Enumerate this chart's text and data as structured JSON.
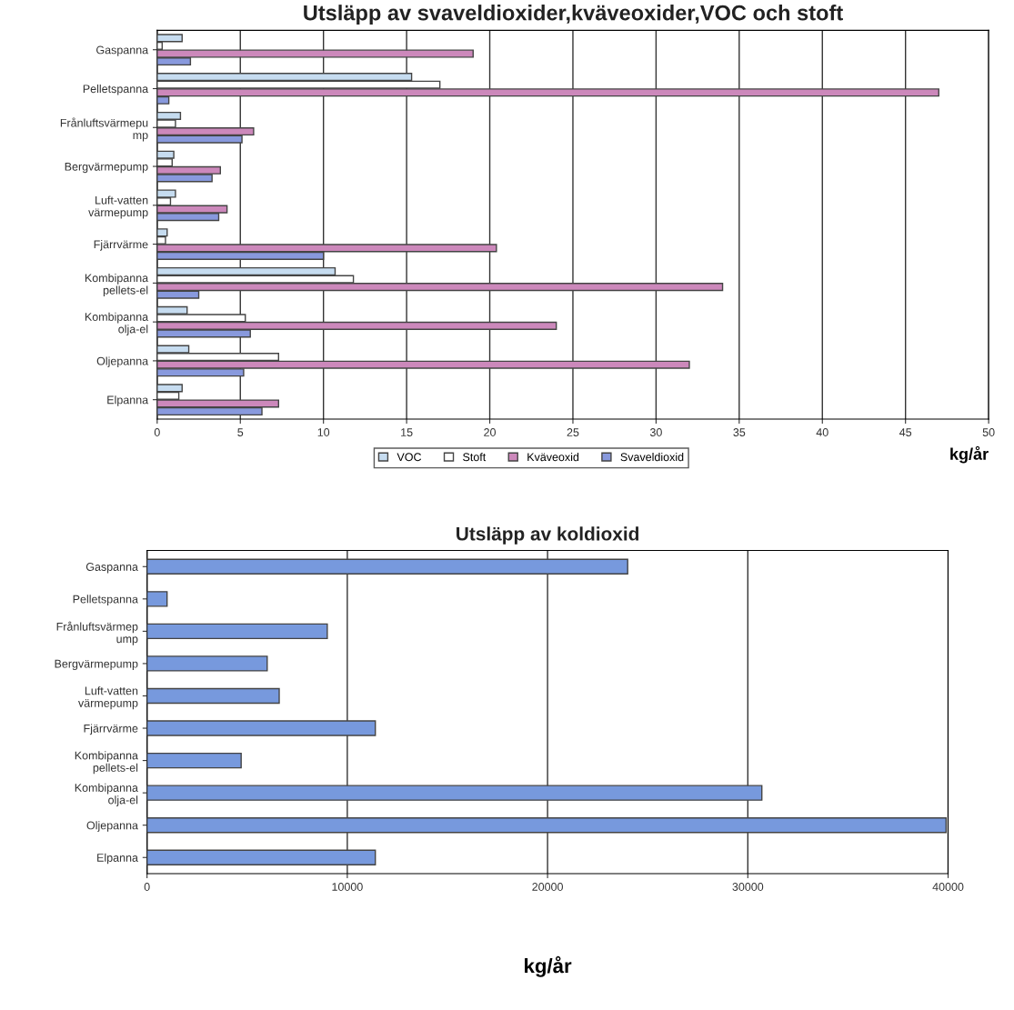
{
  "chart_data": [
    {
      "type": "bar",
      "orientation": "horizontal",
      "title": "Utsläpp av svaveldioxider,kväveoxider,VOC och stoft",
      "xlabel": "kg/år",
      "categories": [
        "Gaspanna",
        "Pelletspanna",
        "Frånluftsvärmepu mp",
        "Bergvärmepump",
        "Luft-vatten värmepump",
        "Fjärrvärme",
        "Kombipanna pellets-el",
        "Kombipanna olja-el",
        "Oljepanna",
        "Elpanna"
      ],
      "series": [
        {
          "name": "VOC",
          "color": "#c6dcf0",
          "values": [
            1.5,
            15.3,
            1.4,
            1.0,
            1.1,
            0.6,
            10.7,
            1.8,
            1.9,
            1.5
          ]
        },
        {
          "name": "Stoft",
          "color": "#ffffff",
          "values": [
            0.3,
            17,
            1.1,
            0.9,
            0.8,
            0.5,
            11.8,
            5.3,
            7.3,
            1.3
          ]
        },
        {
          "name": "Kväveoxid",
          "color": "#cc88bb",
          "values": [
            19,
            47,
            5.8,
            3.8,
            4.2,
            20.4,
            34,
            24,
            32,
            7.3
          ]
        },
        {
          "name": "Svaveldioxid",
          "color": "#8899dd",
          "values": [
            2,
            0.7,
            5.1,
            3.3,
            3.7,
            10,
            2.5,
            5.6,
            5.2,
            6.3
          ]
        }
      ],
      "xlim": [
        0,
        50
      ],
      "xticks": [
        0,
        5,
        10,
        15,
        20,
        25,
        30,
        35,
        40,
        45,
        50
      ],
      "grid": "x",
      "legend": "bottom"
    },
    {
      "type": "bar",
      "orientation": "horizontal",
      "title": "Utsläpp av koldioxid",
      "xlabel": "kg/år",
      "categories": [
        "Gaspanna",
        "Pelletspanna",
        "Frånluftsvärmep ump",
        "Bergvärmepump",
        "Luft-vatten värmepump",
        "Fjärrvärme",
        "Kombipanna pellets-el",
        "Kombipanna olja-el",
        "Oljepanna",
        "Elpanna"
      ],
      "series": [
        {
          "color": "#7799dd",
          "values": [
            24000,
            1000,
            9000,
            6000,
            6600,
            11400,
            4700,
            30700,
            39900,
            11400
          ]
        }
      ],
      "xlim": [
        0,
        40000
      ],
      "xticks": [
        0,
        10000,
        20000,
        30000,
        40000
      ],
      "grid": "x",
      "legend": false
    }
  ]
}
